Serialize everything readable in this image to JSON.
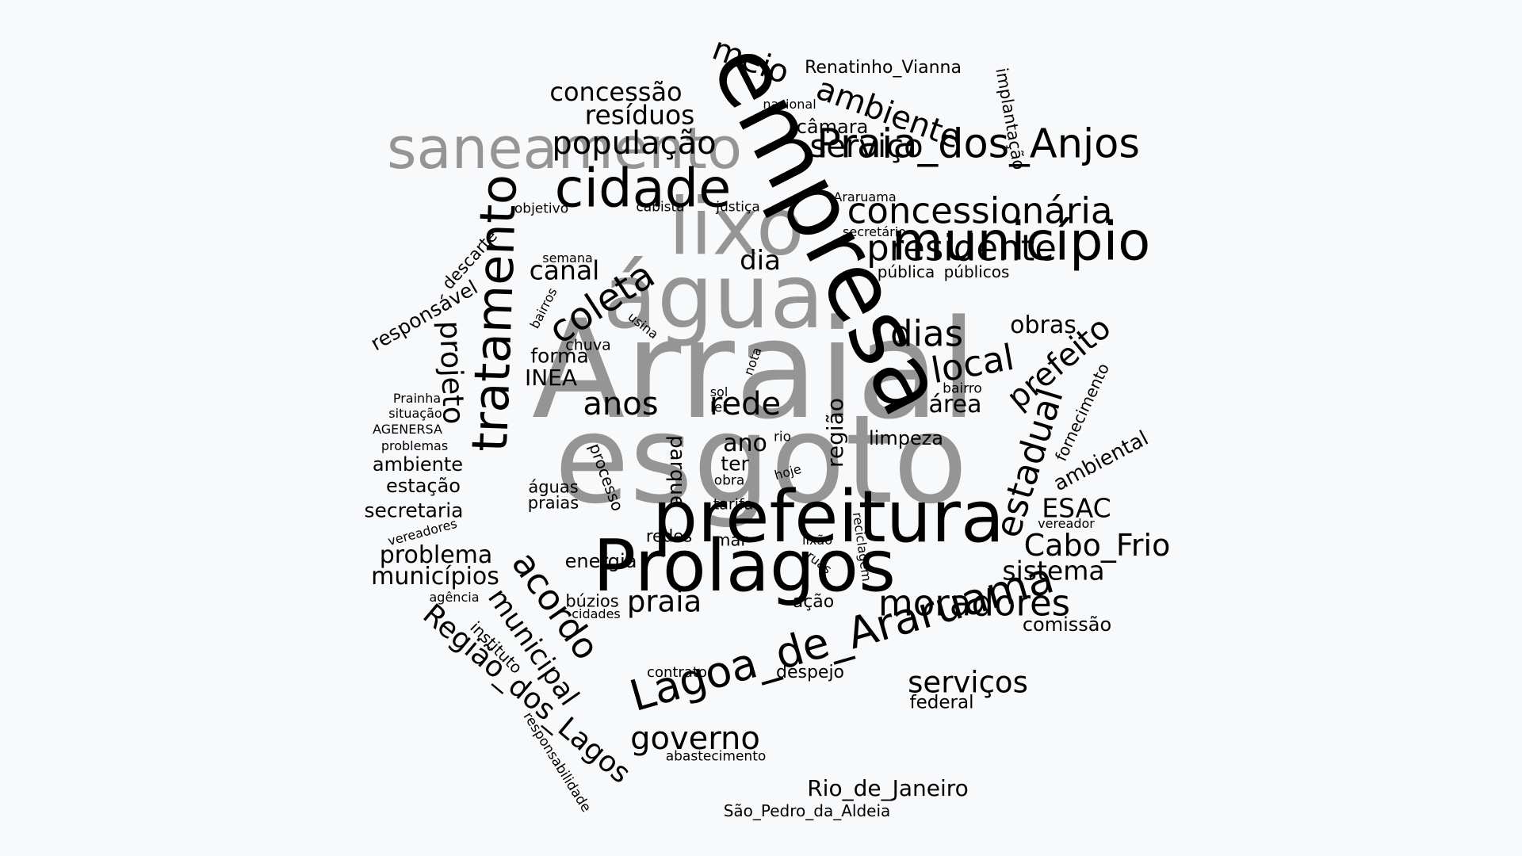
{
  "colors": {
    "background": "#f8f9fb",
    "dark": "#000000",
    "grey": "#959595"
  },
  "words": {
    "arraial": "Arraial",
    "esgoto": "esgoto",
    "agua": "água",
    "lixo": "lixo",
    "saneamento": "saneamento",
    "empresa": "empresa",
    "prefeitura": "prefeitura",
    "prolagos": "Prolagos",
    "cidade": "cidade",
    "municipio": "município",
    "tratamento": "tratamento",
    "lagoa_de_araruama": "Lagoa_de_Araruama",
    "praia_dos_anjos": "Praia_dos_Anjos",
    "concessionaria": "concessionária",
    "presidente": "presidente",
    "coleta": "coleta",
    "moradores": "moradores",
    "regiao_dos_lagos": "Região_dos_Lagos",
    "acordo": "acordo",
    "municipal": "municipal",
    "meio": "meio",
    "ambiente_top": "ambiente",
    "servico": "serviço",
    "populacao": "população",
    "residuos": "resíduos",
    "concessao": "concessão",
    "renatinho_vianna": "Renatinho_Vianna",
    "nacional": "nacional",
    "camara": "câmara",
    "implantacao": "implantação",
    "araruama": "Araruama",
    "secretario": "secretário",
    "objetivo": "objetivo",
    "cabista": "cabista",
    "justica": "justiça",
    "dia": "dia",
    "canal": "canal",
    "semana": "semana",
    "publica": "pública",
    "publicos": "públicos",
    "descarte": "descarte",
    "responsavel": "responsável",
    "bairros": "bairros",
    "usina": "usina",
    "projeto": "projeto",
    "dias": "dias",
    "obras": "obras",
    "local": "local",
    "prefeito": "prefeito",
    "chuva": "chuva",
    "forma": "forma",
    "inea": "INEA",
    "nota": "nota",
    "fornecimento": "fornecimento",
    "prainha": "Prainha",
    "situacao": "situação",
    "agenersa": "AGENERSA",
    "problemas": "problemas",
    "ambiente_left": "ambiente",
    "estacao": "estação",
    "secretaria": "secretaria",
    "vereadores": "vereadores",
    "anos": "anos",
    "rede": "rede",
    "regiao": "região",
    "area": "área",
    "sol": "sol",
    "lei": "lei",
    "bairro": "bairro",
    "estadual": "estadual",
    "ambiental": "ambiental",
    "limpeza": "limpeza",
    "ano": "ano",
    "rio": "rio",
    "ter": "ter",
    "hoje": "hoje",
    "obra": "obra",
    "processo": "processo",
    "parque": "parque",
    "aguas": "águas",
    "praias": "praias",
    "tarifa": "tarifa",
    "esac": "ESAC",
    "vereador": "vereador",
    "cabo_frio": "Cabo_Frio",
    "sistema": "sistema",
    "redes": "redes",
    "mar": "mar",
    "lixao": "lixão",
    "ruas": "ruas",
    "reciclagem": "reciclagem",
    "energia": "energia",
    "problema": "problema",
    "municipios": "municípios",
    "agencia": "agência",
    "praia": "praia",
    "buzios": "búzios",
    "cidades": "cidades",
    "acao": "ação",
    "comissao": "comissão",
    "instituto": "instituto",
    "servicos": "serviços",
    "contrato": "contrato",
    "despejo": "despejo",
    "federal": "federal",
    "governo": "governo",
    "responsabilidade": "responsabilidade",
    "abastecimento": "abastecimento",
    "rio_de_janeiro": "Rio_de_Janeiro",
    "sao_pedro_da_aldeia": "São_Pedro_da_Aldeia"
  }
}
